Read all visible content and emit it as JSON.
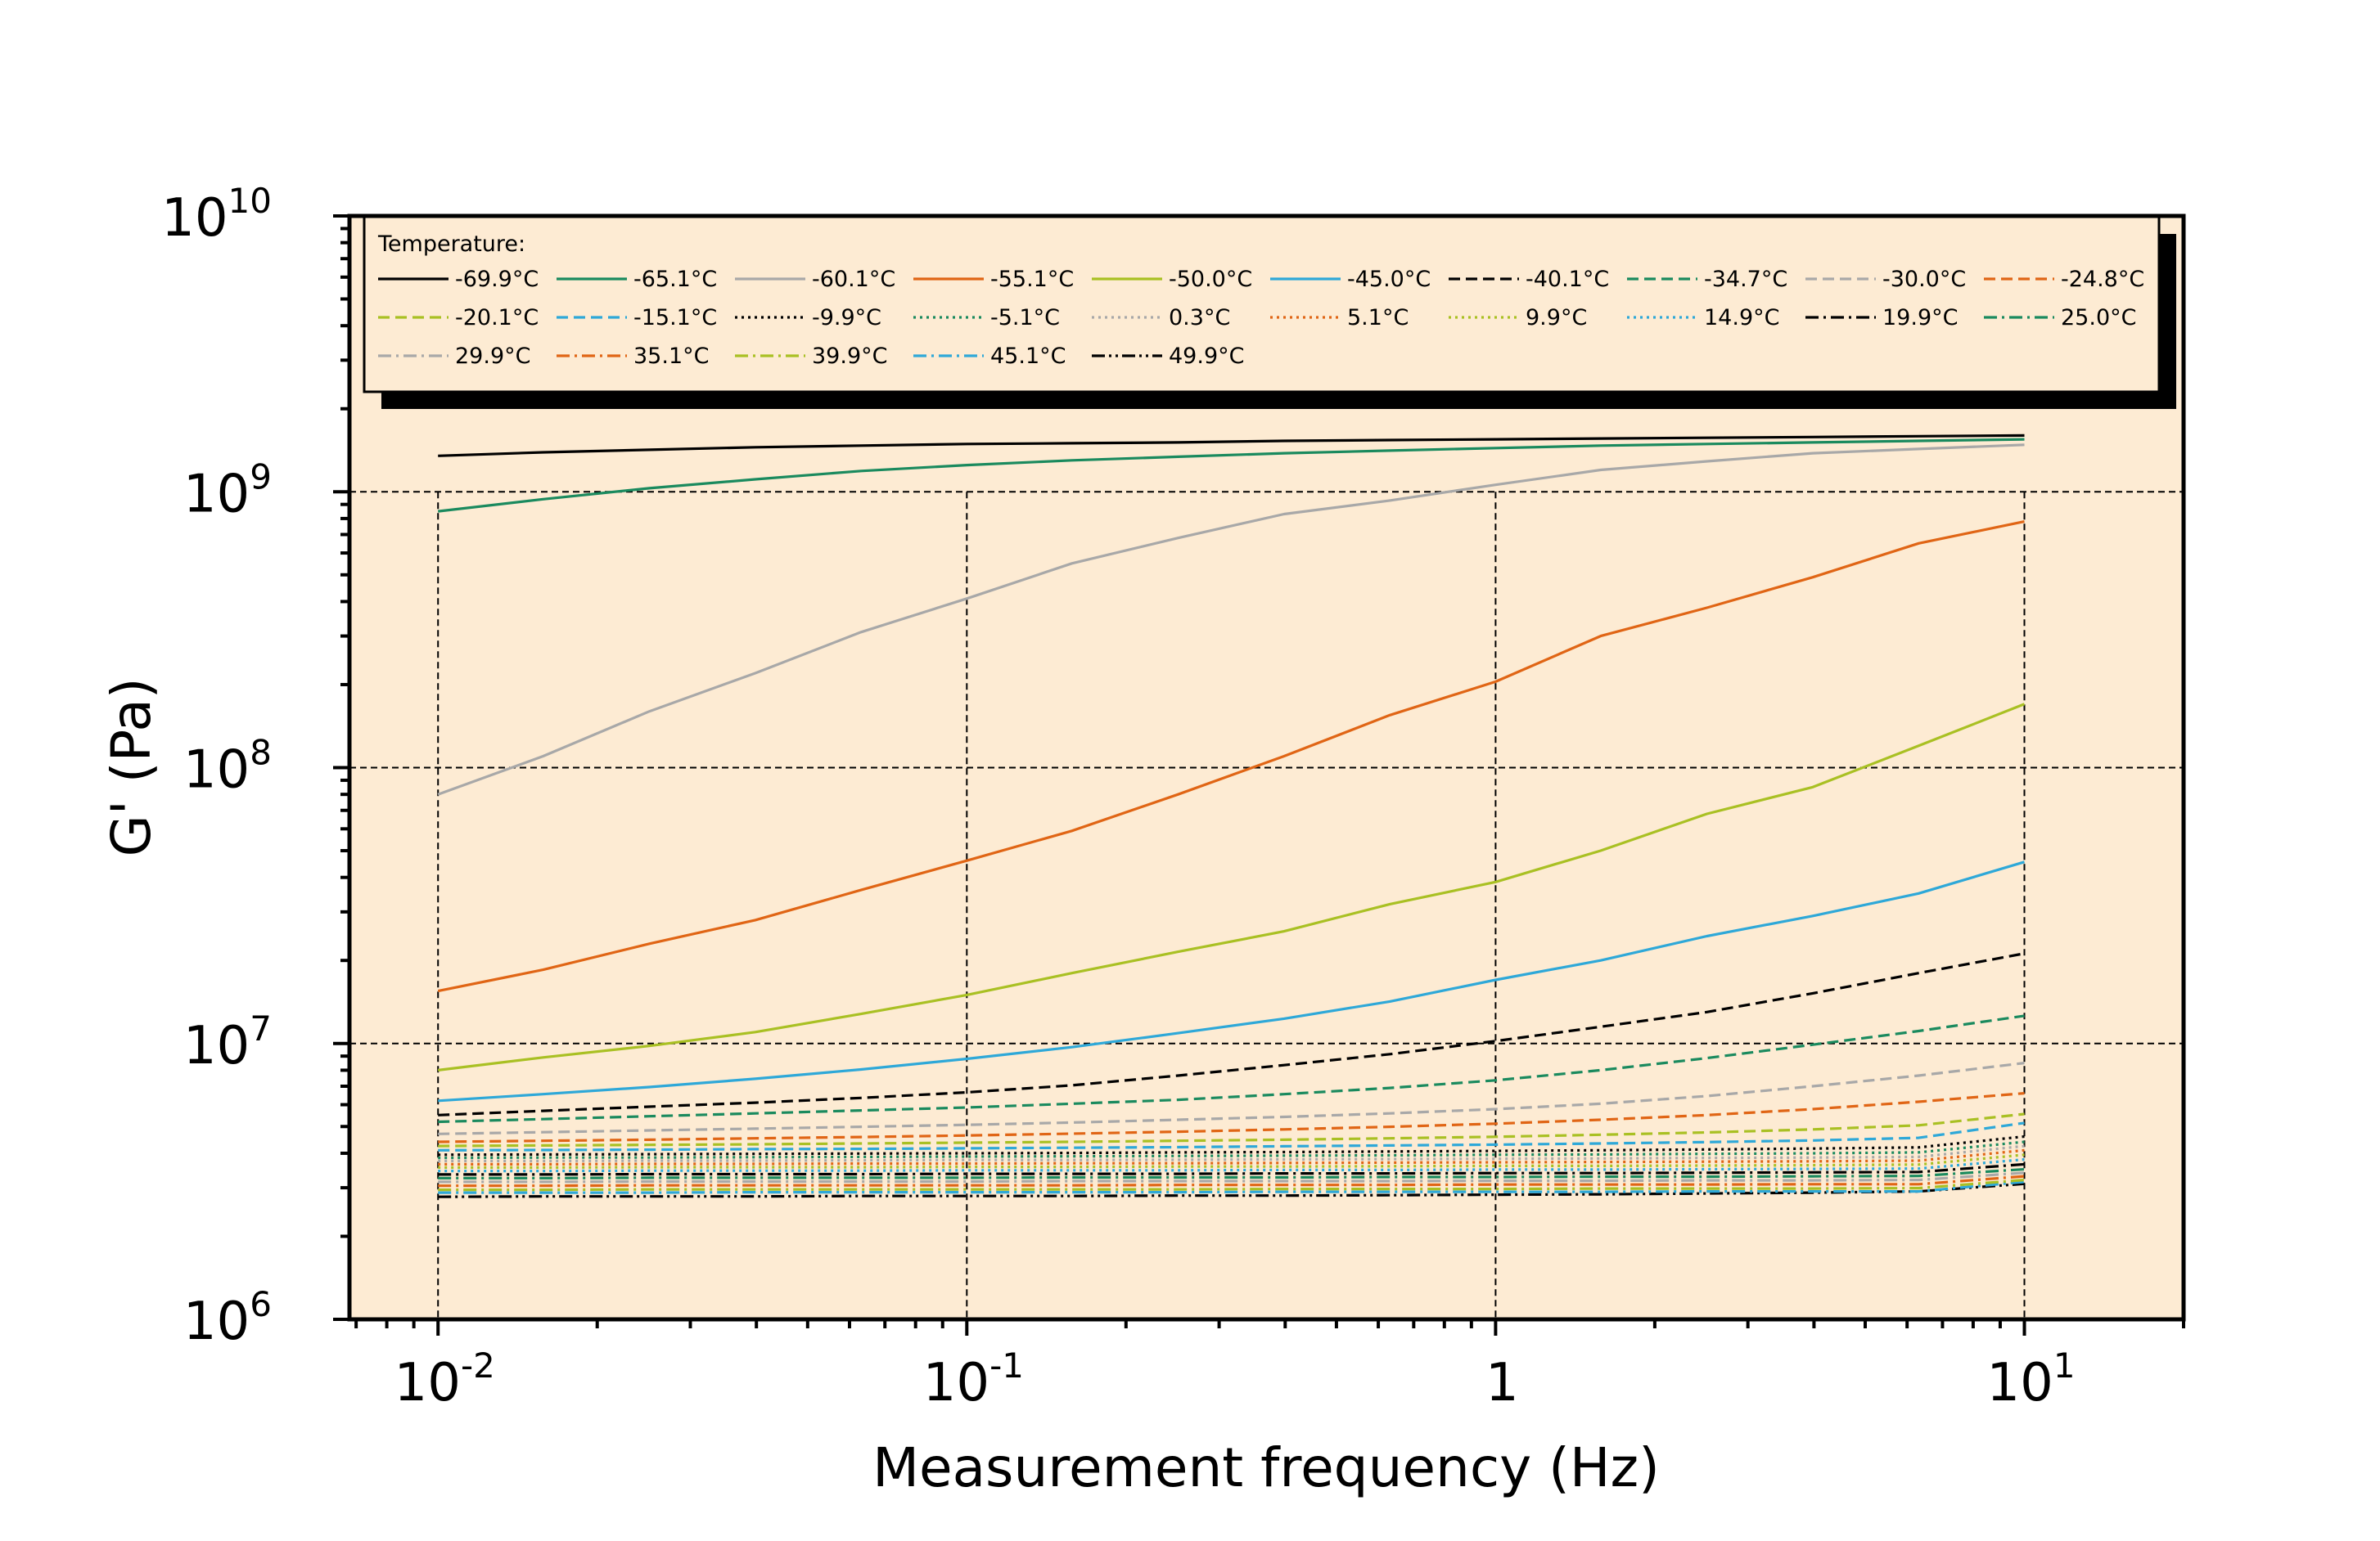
{
  "chart_data": {
    "type": "line",
    "title": "",
    "xlabel": "Measurement frequency (Hz)",
    "ylabel": "G' (Pa)",
    "x_scale": "log",
    "y_scale": "log",
    "xlim": [
      0.0068,
      20
    ],
    "ylim": [
      1000000,
      10000000000
    ],
    "grid": true,
    "grid_style": "dashed",
    "plot_background": "#fdebd3",
    "legend_title": "Temperature:",
    "legend_position": "top",
    "x_ticks": [
      {
        "value": 0.01,
        "base": "10",
        "exp": "-2"
      },
      {
        "value": 0.1,
        "base": "10",
        "exp": "-1"
      },
      {
        "value": 1,
        "base": "1",
        "exp": ""
      },
      {
        "value": 10,
        "base": "10",
        "exp": "1"
      }
    ],
    "y_ticks": [
      {
        "value": 1000000,
        "base": "10",
        "exp": "6"
      },
      {
        "value": 10000000,
        "base": "10",
        "exp": "7"
      },
      {
        "value": 100000000,
        "base": "10",
        "exp": "8"
      },
      {
        "value": 1000000000,
        "base": "10",
        "exp": "9"
      },
      {
        "value": 10000000000,
        "base": "10",
        "exp": "10"
      }
    ],
    "x": [
      0.01,
      0.0158,
      0.0251,
      0.0398,
      0.0631,
      0.1,
      0.158,
      0.251,
      0.398,
      0.631,
      1,
      1.58,
      2.51,
      3.98,
      6.31,
      10
    ],
    "series": [
      {
        "name": "-69.9°C",
        "color": "#000000",
        "dash": "solid",
        "values": [
          1350000000,
          1390000000,
          1420000000,
          1450000000,
          1470000000,
          1490000000,
          1500000000,
          1510000000,
          1530000000,
          1540000000,
          1550000000,
          1560000000,
          1570000000,
          1580000000,
          1590000000,
          1600000000
        ]
      },
      {
        "name": "-65.1°C",
        "color": "#1a8a5e",
        "dash": "solid",
        "values": [
          850000000,
          940000000,
          1030000000,
          1110000000,
          1190000000,
          1250000000,
          1300000000,
          1340000000,
          1380000000,
          1410000000,
          1440000000,
          1470000000,
          1490000000,
          1510000000,
          1530000000,
          1550000000
        ]
      },
      {
        "name": "-60.1°C",
        "color": "#a8a8a8",
        "dash": "solid",
        "values": [
          80000000,
          110000000,
          160000000,
          220000000,
          310000000,
          410000000,
          550000000,
          680000000,
          830000000,
          930000000,
          1060000000,
          1200000000,
          1290000000,
          1380000000,
          1430000000,
          1480000000
        ]
      },
      {
        "name": "-55.1°C",
        "color": "#e06515",
        "dash": "solid",
        "values": [
          15500000,
          18500000,
          23000000,
          28000000,
          36000000,
          46000000,
          59000000,
          80000000,
          110000000,
          155000000,
          205000000,
          300000000,
          380000000,
          490000000,
          650000000,
          780000000
        ]
      },
      {
        "name": "-50.0°C",
        "color": "#a9c023",
        "dash": "solid",
        "values": [
          8000000,
          8900000,
          9800000,
          11000000,
          12800000,
          15000000,
          18000000,
          21500000,
          25500000,
          32000000,
          38500000,
          50000000,
          68000000,
          85000000,
          120000000,
          170000000
        ]
      },
      {
        "name": "-45.0°C",
        "color": "#2ea8d8",
        "dash": "solid",
        "values": [
          6200000,
          6550000,
          6950000,
          7450000,
          8050000,
          8800000,
          9700000,
          10900000,
          12300000,
          14200000,
          17000000,
          20000000,
          24500000,
          29000000,
          35000000,
          45500000
        ]
      },
      {
        "name": "-40.1°C",
        "color": "#000000",
        "dash": "dashed",
        "values": [
          5500000,
          5700000,
          5900000,
          6100000,
          6350000,
          6650000,
          7050000,
          7650000,
          8350000,
          9150000,
          10200000,
          11500000,
          13000000,
          15200000,
          18000000,
          21200000
        ]
      },
      {
        "name": "-34.7°C",
        "color": "#1a8a5e",
        "dash": "dashed",
        "values": [
          5200000,
          5320000,
          5450000,
          5580000,
          5720000,
          5860000,
          6050000,
          6250000,
          6550000,
          6900000,
          7350000,
          8000000,
          8850000,
          9900000,
          11100000,
          12600000
        ]
      },
      {
        "name": "-30.0°C",
        "color": "#a8a8a8",
        "dash": "dashed",
        "values": [
          4700000,
          4770000,
          4840000,
          4910000,
          4990000,
          5070000,
          5170000,
          5290000,
          5420000,
          5580000,
          5780000,
          6050000,
          6450000,
          7000000,
          7650000,
          8500000
        ]
      },
      {
        "name": "-24.8°C",
        "color": "#e06515",
        "dash": "dashed",
        "values": [
          4400000,
          4440000,
          4480000,
          4530000,
          4580000,
          4640000,
          4710000,
          4790000,
          4880000,
          4990000,
          5120000,
          5290000,
          5500000,
          5780000,
          6150000,
          6600000
        ]
      },
      {
        "name": "-20.1°C",
        "color": "#a9c023",
        "dash": "dashed",
        "values": [
          4250000,
          4270000,
          4290000,
          4310000,
          4340000,
          4370000,
          4400000,
          4440000,
          4480000,
          4530000,
          4590000,
          4670000,
          4760000,
          4880000,
          5050000,
          5550000
        ]
      },
      {
        "name": "-15.1°C",
        "color": "#2ea8d8",
        "dash": "dashed",
        "values": [
          4100000,
          4110000,
          4120000,
          4140000,
          4150000,
          4170000,
          4190000,
          4210000,
          4240000,
          4270000,
          4300000,
          4340000,
          4390000,
          4450000,
          4550000,
          5150000
        ]
      },
      {
        "name": "-9.9°C",
        "color": "#000000",
        "dash": "dotted",
        "values": [
          3950000,
          3960000,
          3970000,
          3980000,
          3990000,
          4000000,
          4010000,
          4030000,
          4040000,
          4060000,
          4080000,
          4100000,
          4130000,
          4160000,
          4200000,
          4600000
        ]
      },
      {
        "name": "-5.1°C",
        "color": "#1a8a5e",
        "dash": "dotted",
        "values": [
          3850000,
          3860000,
          3860000,
          3870000,
          3880000,
          3890000,
          3900000,
          3910000,
          3920000,
          3930000,
          3950000,
          3960000,
          3980000,
          4000000,
          4030000,
          4400000
        ]
      },
      {
        "name": "0.3°C",
        "color": "#a8a8a8",
        "dash": "dotted",
        "values": [
          3750000,
          3750000,
          3760000,
          3760000,
          3770000,
          3780000,
          3780000,
          3790000,
          3800000,
          3810000,
          3820000,
          3830000,
          3850000,
          3860000,
          3880000,
          4250000
        ]
      },
      {
        "name": "5.1°C",
        "color": "#e06515",
        "dash": "dotted",
        "values": [
          3650000,
          3650000,
          3660000,
          3660000,
          3670000,
          3670000,
          3680000,
          3680000,
          3690000,
          3700000,
          3710000,
          3720000,
          3730000,
          3740000,
          3760000,
          4100000
        ]
      },
      {
        "name": "9.9°C",
        "color": "#a9c023",
        "dash": "dotted",
        "values": [
          3550000,
          3550000,
          3560000,
          3560000,
          3560000,
          3570000,
          3570000,
          3580000,
          3580000,
          3590000,
          3600000,
          3600000,
          3610000,
          3620000,
          3640000,
          3950000
        ]
      },
      {
        "name": "14.9°C",
        "color": "#2ea8d8",
        "dash": "dotted",
        "values": [
          3450000,
          3450000,
          3460000,
          3460000,
          3460000,
          3470000,
          3470000,
          3470000,
          3480000,
          3480000,
          3490000,
          3490000,
          3500000,
          3510000,
          3520000,
          3800000
        ]
      },
      {
        "name": "19.9°C",
        "color": "#000000",
        "dash": "dashdot",
        "values": [
          3350000,
          3350000,
          3360000,
          3360000,
          3360000,
          3370000,
          3370000,
          3370000,
          3380000,
          3380000,
          3390000,
          3390000,
          3400000,
          3410000,
          3420000,
          3650000
        ]
      },
      {
        "name": "25.0°C",
        "color": "#1a8a5e",
        "dash": "dashdot",
        "values": [
          3250000,
          3250000,
          3260000,
          3260000,
          3260000,
          3260000,
          3270000,
          3270000,
          3270000,
          3280000,
          3280000,
          3290000,
          3290000,
          3300000,
          3310000,
          3500000
        ]
      },
      {
        "name": "29.9°C",
        "color": "#a8a8a8",
        "dash": "dashdot",
        "values": [
          3150000,
          3150000,
          3160000,
          3160000,
          3160000,
          3160000,
          3170000,
          3170000,
          3170000,
          3170000,
          3180000,
          3180000,
          3190000,
          3190000,
          3200000,
          3400000
        ]
      },
      {
        "name": "35.1°C",
        "color": "#e06515",
        "dash": "dashdot",
        "values": [
          3050000,
          3050000,
          3060000,
          3060000,
          3060000,
          3060000,
          3060000,
          3070000,
          3070000,
          3070000,
          3080000,
          3080000,
          3080000,
          3090000,
          3090000,
          3300000
        ]
      },
      {
        "name": "39.9°C",
        "color": "#a9c023",
        "dash": "dashdot",
        "values": [
          2950000,
          2950000,
          2960000,
          2960000,
          2960000,
          2960000,
          2960000,
          2960000,
          2970000,
          2970000,
          2970000,
          2980000,
          2980000,
          2980000,
          2990000,
          3200000
        ]
      },
      {
        "name": "45.1°C",
        "color": "#2ea8d8",
        "dash": "dashdot",
        "values": [
          2880000,
          2880000,
          2880000,
          2890000,
          2890000,
          2890000,
          2890000,
          2890000,
          2900000,
          2900000,
          2900000,
          2900000,
          2910000,
          2910000,
          2910000,
          3150000
        ]
      },
      {
        "name": "49.9°C",
        "color": "#000000",
        "dash": "dashdotdot",
        "values": [
          2780000,
          2790000,
          2790000,
          2790000,
          2800000,
          2800000,
          2800000,
          2810000,
          2810000,
          2820000,
          2830000,
          2840000,
          2860000,
          2880000,
          2910000,
          3100000
        ]
      }
    ]
  }
}
